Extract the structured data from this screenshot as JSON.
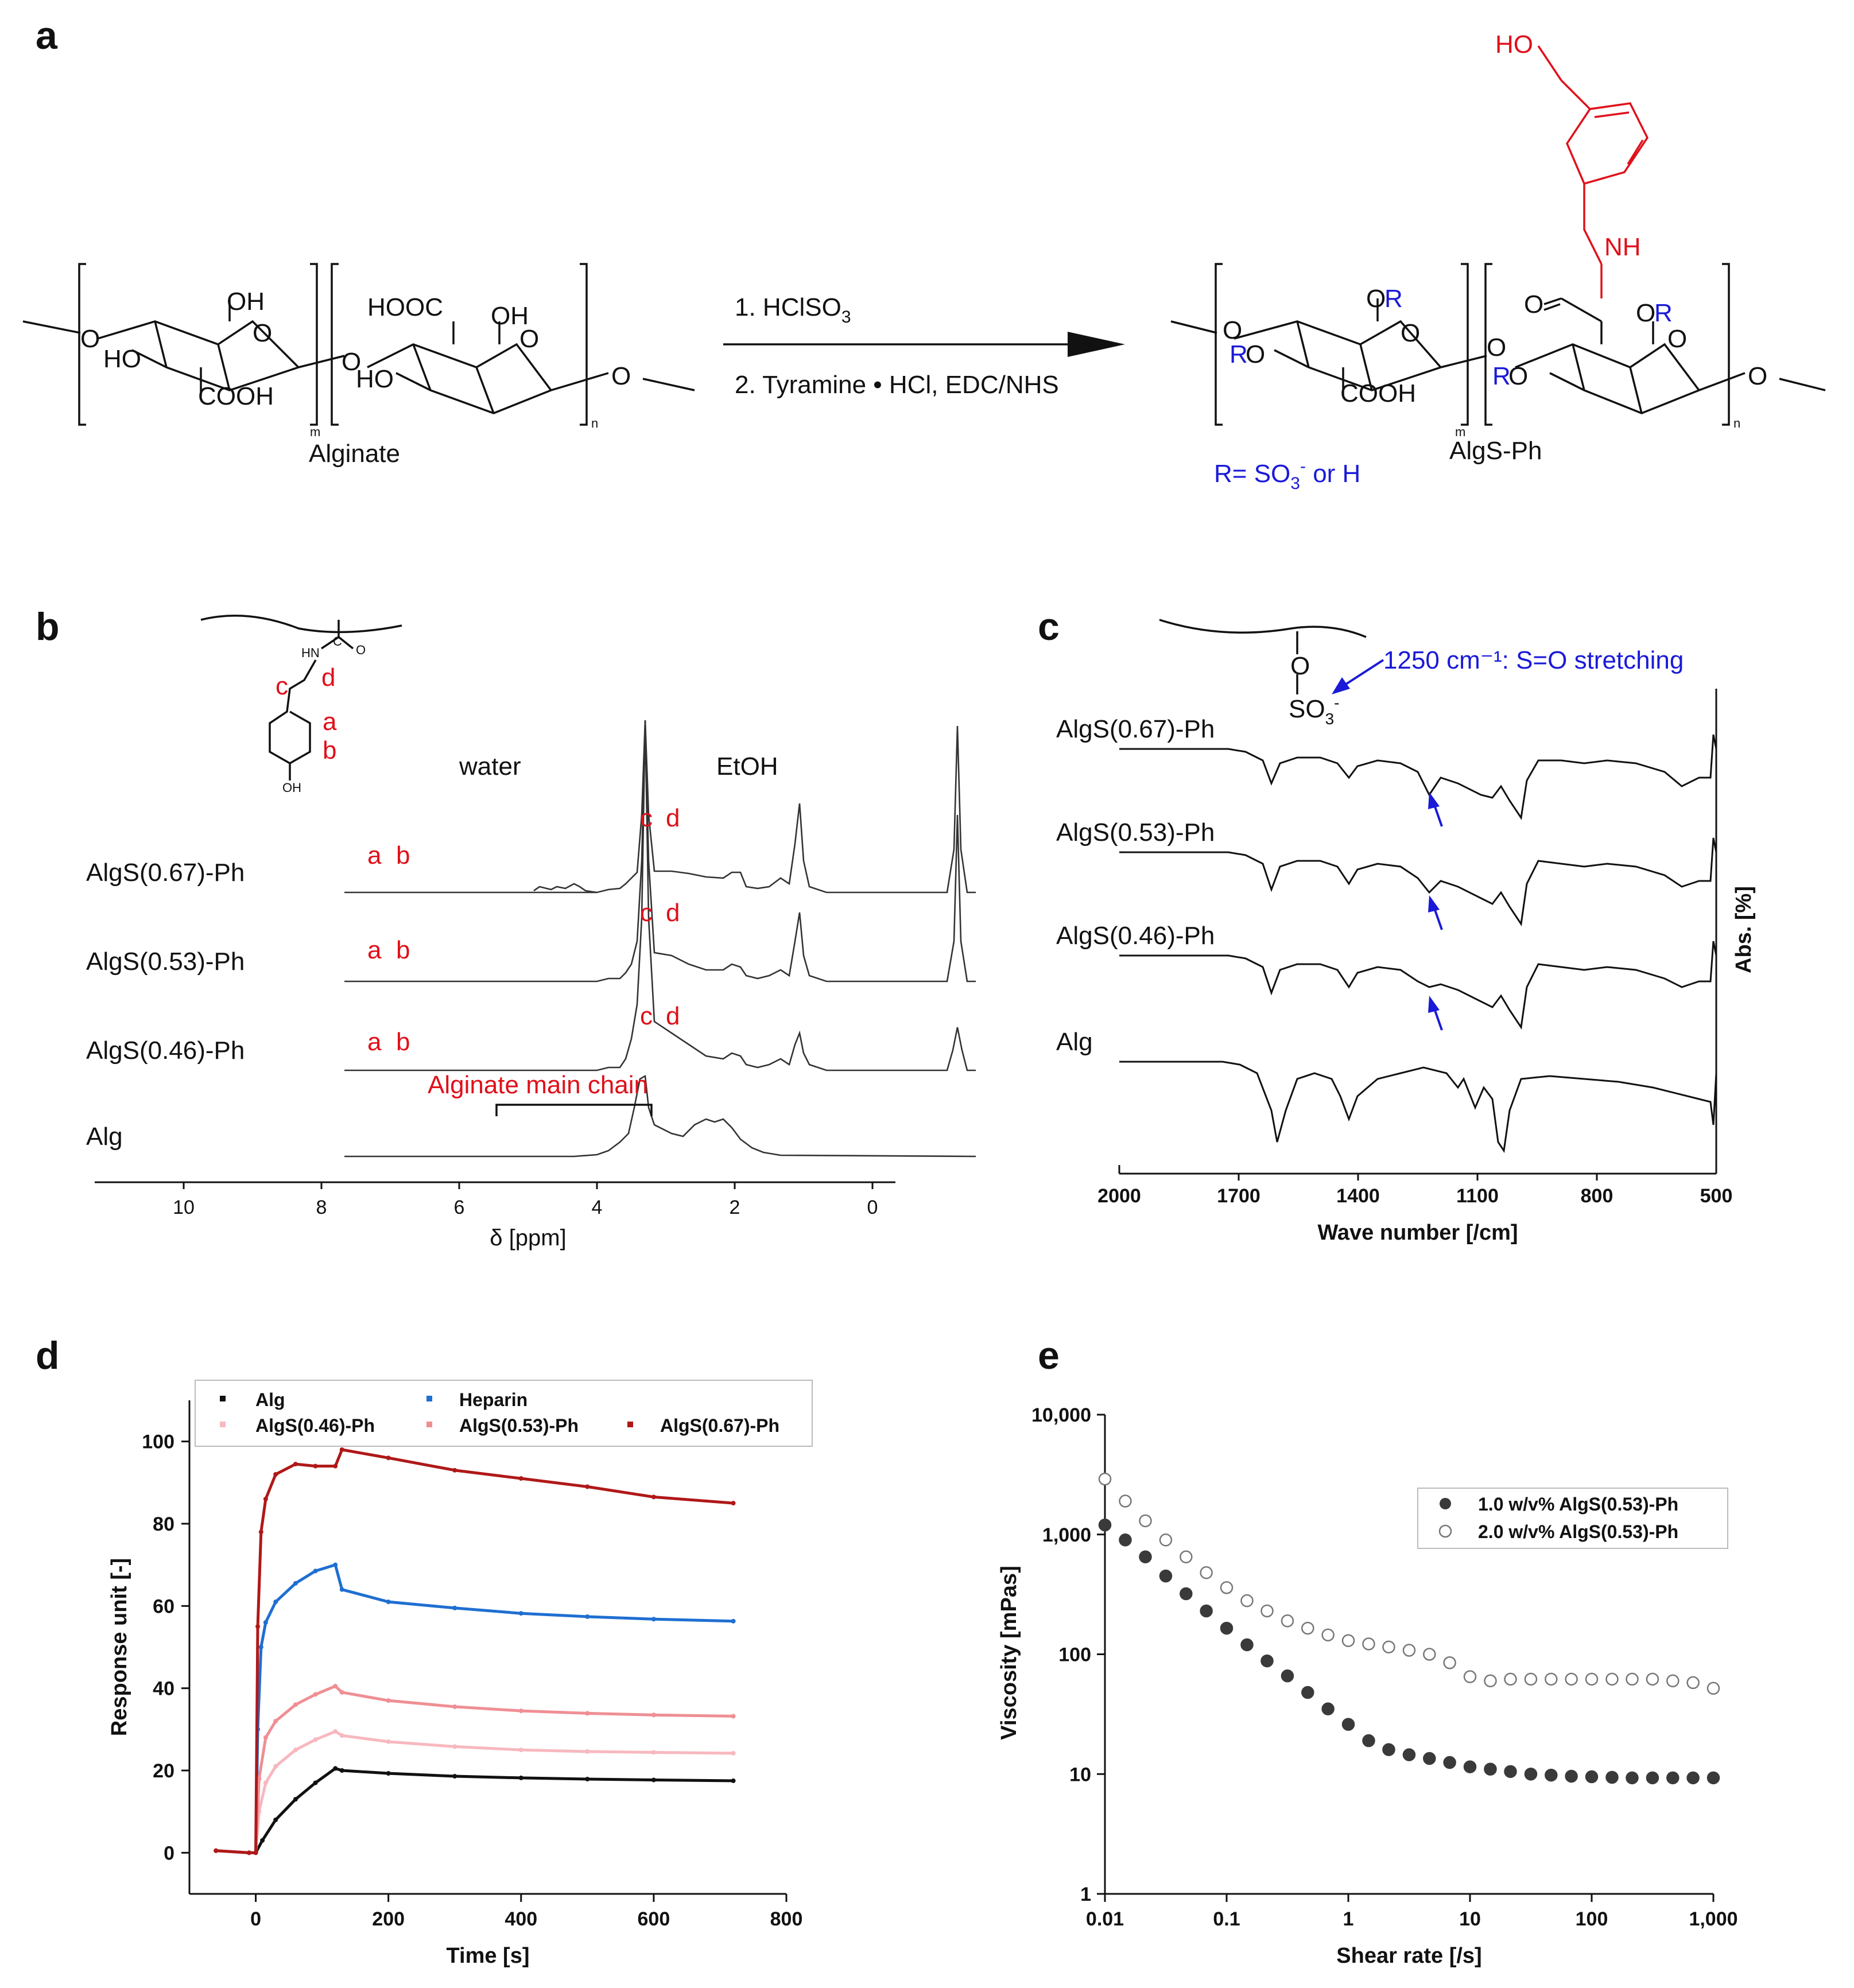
{
  "panels": {
    "a": {
      "label": "a",
      "reactant_name": "Alginate",
      "product_name": "AlgS-Ph",
      "step1": "1. HClSO",
      "step1_sub": "3",
      "step2": "2. Tyramine • HCl,  EDC/NHS",
      "r_def_prefix": "R= SO",
      "r_def_sub": "3",
      "r_def_sup": "-",
      "r_def_suffix": " or H",
      "groups": {
        "oh": "OH",
        "ho": "HO",
        "cooh": "COOH",
        "hooc": "HOOC",
        "o": "O",
        "nh": "NH",
        "r": "R",
        "m": "m",
        "n": "n"
      }
    },
    "b": {
      "label": "b",
      "xlabel": "δ [ppm]",
      "xticks": [
        "10",
        "8",
        "6",
        "4",
        "2",
        "0"
      ],
      "traces": [
        "AlgS(0.67)-Ph",
        "AlgS(0.53)-Ph",
        "AlgS(0.46)-Ph",
        "Alg"
      ],
      "annot_water": "water",
      "annot_etoh": "EtOH",
      "annot_main_chain": "Alginate  main  chain",
      "peak_labels": {
        "a": "a",
        "b": "b",
        "c": "c",
        "d": "d"
      },
      "struct_text": {
        "hn": "HN",
        "o": "O",
        "c": "C",
        "oh": "OH"
      }
    },
    "c": {
      "label": "c",
      "xlabel": "Wave number [/cm]",
      "ylabel": "Abs. [%]",
      "xticks": [
        "2000",
        "1700",
        "1400",
        "1100",
        "800",
        "500"
      ],
      "traces": [
        "AlgS(0.67)-Ph",
        "AlgS(0.53)-Ph",
        "AlgS(0.46)-Ph",
        "Alg"
      ],
      "annotation": "1250 cm⁻¹: S=O stretching",
      "struct_text": {
        "o": "O",
        "so3": "SO",
        "so3_sub": "3",
        "so3_sup": "-"
      }
    },
    "d": {
      "label": "d",
      "xlabel": "Time [s]",
      "ylabel": "Response unit [-]",
      "legend": [
        "Alg",
        "Heparin",
        "AlgS(0.46)-Ph",
        "AlgS(0.53)-Ph",
        "AlgS(0.67)-Ph"
      ]
    },
    "e": {
      "label": "e",
      "xlabel": "Shear rate [/s]",
      "ylabel": "Viscosity [mPas]",
      "legend": [
        "1.0 w/v% AlgS(0.53)-Ph",
        "2.0 w/v% AlgS(0.53)-Ph"
      ]
    }
  },
  "chart_data": [
    {
      "panel": "d",
      "type": "scatter",
      "title": "",
      "xlabel": "Time [s]",
      "ylabel": "Response unit [-]",
      "xlim": [
        -100,
        800
      ],
      "ylim": [
        -10,
        110
      ],
      "xticks": [
        0,
        200,
        400,
        600,
        800
      ],
      "yticks": [
        0,
        20,
        40,
        60,
        80,
        100
      ],
      "series": [
        {
          "name": "Alg",
          "color": "#111111",
          "x": [
            -60,
            -10,
            0,
            10,
            30,
            60,
            90,
            120,
            130,
            200,
            300,
            400,
            500,
            600,
            720
          ],
          "values": [
            0.5,
            0,
            0,
            3,
            8,
            13,
            17,
            20.5,
            20,
            19.3,
            18.6,
            18.2,
            17.9,
            17.7,
            17.5
          ]
        },
        {
          "name": "Heparin",
          "color": "#1f6fd1",
          "x": [
            -60,
            -10,
            0,
            3,
            8,
            15,
            30,
            60,
            90,
            120,
            130,
            200,
            300,
            400,
            500,
            600,
            720
          ],
          "values": [
            0.5,
            0,
            0,
            30,
            50,
            56,
            61,
            65.5,
            68.5,
            70,
            64,
            61,
            59.5,
            58.2,
            57.4,
            56.8,
            56.3
          ]
        },
        {
          "name": "AlgS(0.46)-Ph",
          "color": "#f7b8bf",
          "x": [
            -60,
            -10,
            0,
            5,
            15,
            30,
            60,
            90,
            120,
            130,
            200,
            300,
            400,
            500,
            600,
            720
          ],
          "values": [
            0.5,
            0,
            0,
            10,
            17,
            21,
            25,
            27.5,
            29.5,
            28.5,
            27,
            25.8,
            25,
            24.6,
            24.4,
            24.2
          ]
        },
        {
          "name": "AlgS(0.53)-Ph",
          "color": "#ef8f94",
          "x": [
            -60,
            -10,
            0,
            5,
            15,
            30,
            60,
            90,
            120,
            130,
            200,
            300,
            400,
            500,
            600,
            720
          ],
          "values": [
            0.5,
            0,
            0,
            18,
            28,
            32,
            36,
            38.5,
            40.5,
            39,
            37,
            35.5,
            34.5,
            33.9,
            33.5,
            33.2
          ]
        },
        {
          "name": "AlgS(0.67)-Ph",
          "color": "#b01818",
          "x": [
            -60,
            -10,
            0,
            3,
            8,
            15,
            30,
            60,
            90,
            120,
            130,
            200,
            300,
            400,
            500,
            600,
            720
          ],
          "values": [
            0.5,
            0,
            0,
            55,
            78,
            86,
            92,
            94.5,
            94,
            94,
            98,
            96,
            93,
            91,
            89,
            86.5,
            85
          ]
        }
      ]
    },
    {
      "panel": "e",
      "type": "scatter",
      "title": "",
      "xlabel": "Shear rate [/s]",
      "ylabel": "Viscosity [mPas]",
      "xscale": "log",
      "yscale": "log",
      "xlim": [
        0.01,
        1000
      ],
      "ylim": [
        1,
        10000
      ],
      "xticks": [
        "0.01",
        "0.1",
        "1",
        "10",
        "100",
        "1,000"
      ],
      "yticks": [
        "1",
        "10",
        "100",
        "1,000",
        "10,000"
      ],
      "series": [
        {
          "name": "1.0 w/v% AlgS(0.53)-Ph",
          "marker": "filled",
          "x": [
            0.01,
            0.0147,
            0.0215,
            0.0316,
            0.0464,
            0.0681,
            0.1,
            0.147,
            0.215,
            0.316,
            0.464,
            0.681,
            1,
            1.47,
            2.15,
            3.16,
            4.64,
            6.81,
            10,
            14.7,
            21.5,
            31.6,
            46.4,
            68.1,
            100,
            147,
            215,
            316,
            464,
            681,
            1000
          ],
          "values": [
            1200,
            900,
            650,
            450,
            320,
            230,
            165,
            120,
            88,
            66,
            48,
            35,
            26,
            19,
            16,
            14.5,
            13.5,
            12.5,
            11.5,
            11,
            10.5,
            10,
            9.8,
            9.6,
            9.5,
            9.4,
            9.3,
            9.3,
            9.3,
            9.3,
            9.3
          ]
        },
        {
          "name": "2.0 w/v% AlgS(0.53)-Ph",
          "marker": "open",
          "x": [
            0.01,
            0.0147,
            0.0215,
            0.0316,
            0.0464,
            0.0681,
            0.1,
            0.147,
            0.215,
            0.316,
            0.464,
            0.681,
            1,
            1.47,
            2.15,
            3.16,
            4.64,
            6.81,
            10,
            14.7,
            21.5,
            31.6,
            46.4,
            68.1,
            100,
            147,
            215,
            316,
            464,
            681,
            1000
          ],
          "values": [
            2900,
            1900,
            1300,
            900,
            650,
            480,
            360,
            280,
            230,
            190,
            165,
            145,
            130,
            122,
            115,
            108,
            100,
            85,
            65,
            60,
            62,
            62,
            62,
            62,
            62,
            62,
            62,
            62,
            60,
            58,
            52
          ]
        }
      ]
    }
  ]
}
